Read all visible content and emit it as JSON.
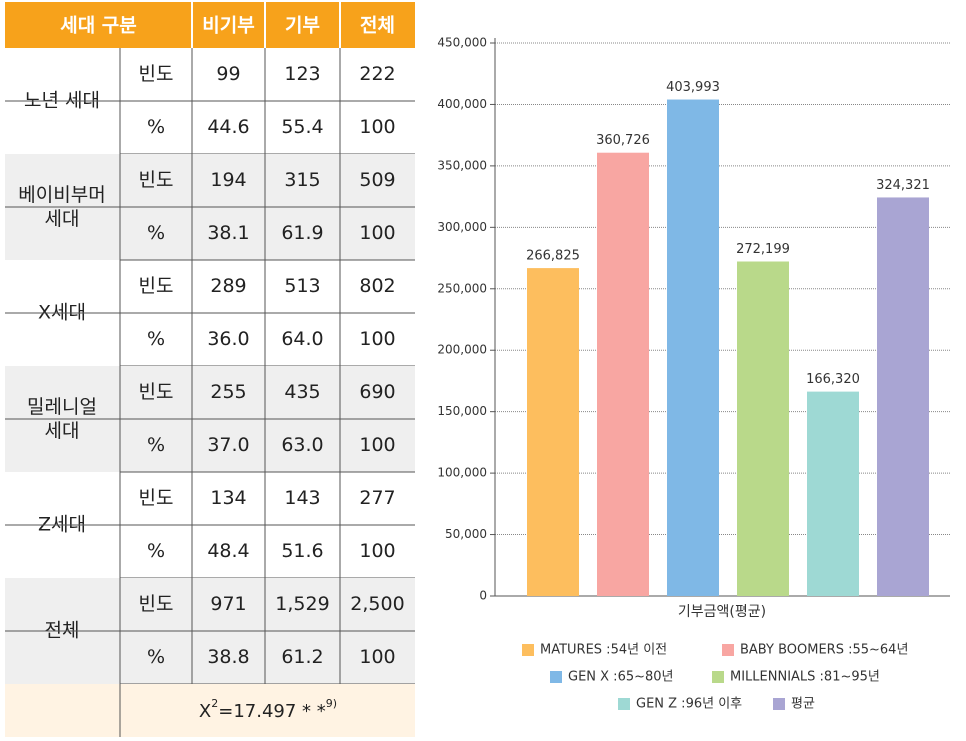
{
  "table": {
    "header": [
      "세대 구분",
      "비기부",
      "기부",
      "전체"
    ],
    "groups": [
      {
        "label": "노년 세대",
        "rows": [
          [
            "빈도",
            "99",
            "123",
            "222"
          ],
          [
            "%",
            "44.6",
            "55.4",
            "100"
          ]
        ]
      },
      {
        "label": "베이비부머\n세대",
        "rows": [
          [
            "빈도",
            "194",
            "315",
            "509"
          ],
          [
            "%",
            "38.1",
            "61.9",
            "100"
          ]
        ]
      },
      {
        "label": "X세대",
        "rows": [
          [
            "빈도",
            "289",
            "513",
            "802"
          ],
          [
            "%",
            "36.0",
            "64.0",
            "100"
          ]
        ]
      },
      {
        "label": "밀레니얼\n세대",
        "rows": [
          [
            "빈도",
            "255",
            "435",
            "690"
          ],
          [
            "%",
            "37.0",
            "63.0",
            "100"
          ]
        ]
      },
      {
        "label": "Z세대",
        "rows": [
          [
            "빈도",
            "134",
            "143",
            "277"
          ],
          [
            "%",
            "48.4",
            "51.6",
            "100"
          ]
        ]
      },
      {
        "label": "전체",
        "rows": [
          [
            "빈도",
            "971",
            "1,529",
            "2,500"
          ],
          [
            "%",
            "38.8",
            "61.2",
            "100"
          ]
        ]
      }
    ],
    "footer": {
      "base": "X",
      "sup": "2",
      "text": "=17.497 * *",
      "note": "9)"
    }
  },
  "chart_data": {
    "type": "bar",
    "categories": [
      "기부금액(평균)"
    ],
    "series": [
      {
        "name": "MATURES :54년 이전",
        "color": "#FDBE5E",
        "values": [
          266825
        ],
        "value_labels": [
          "266,825"
        ]
      },
      {
        "name": "BABY BOOMERS :55~64년",
        "color": "#F8A6A2",
        "values": [
          360726
        ],
        "value_labels": [
          "360,726"
        ]
      },
      {
        "name": "GEN X :65~80년",
        "color": "#7FB8E6",
        "values": [
          403993
        ],
        "value_labels": [
          "403,993"
        ]
      },
      {
        "name": "MILLENNIALS :81~95년",
        "color": "#B9D98A",
        "values": [
          272199
        ],
        "value_labels": [
          "272,199"
        ]
      },
      {
        "name": "GEN Z :96년 이후",
        "color": "#9ED9D4",
        "values": [
          166320
        ],
        "value_labels": [
          "166,320"
        ]
      },
      {
        "name": "평균",
        "color": "#A9A5D3",
        "values": [
          324321
        ],
        "value_labels": [
          "324,321"
        ]
      }
    ],
    "ylim": [
      0,
      450000
    ],
    "yticks": [
      0,
      {
        "value": 50000,
        "label": "50,000"
      },
      {
        "value": 100000,
        "label": "100,000"
      },
      {
        "value": 150000,
        "label": "150,000"
      },
      {
        "value": 200000,
        "label": "200,000"
      },
      {
        "value": 250000,
        "label": "250,000"
      },
      {
        "value": 300000,
        "label": "300,000"
      },
      {
        "value": 350000,
        "label": "350,000"
      },
      {
        "value": 400000,
        "label": "400,000"
      },
      {
        "value": 450000,
        "label": "450,000"
      }
    ],
    "grid": true
  }
}
